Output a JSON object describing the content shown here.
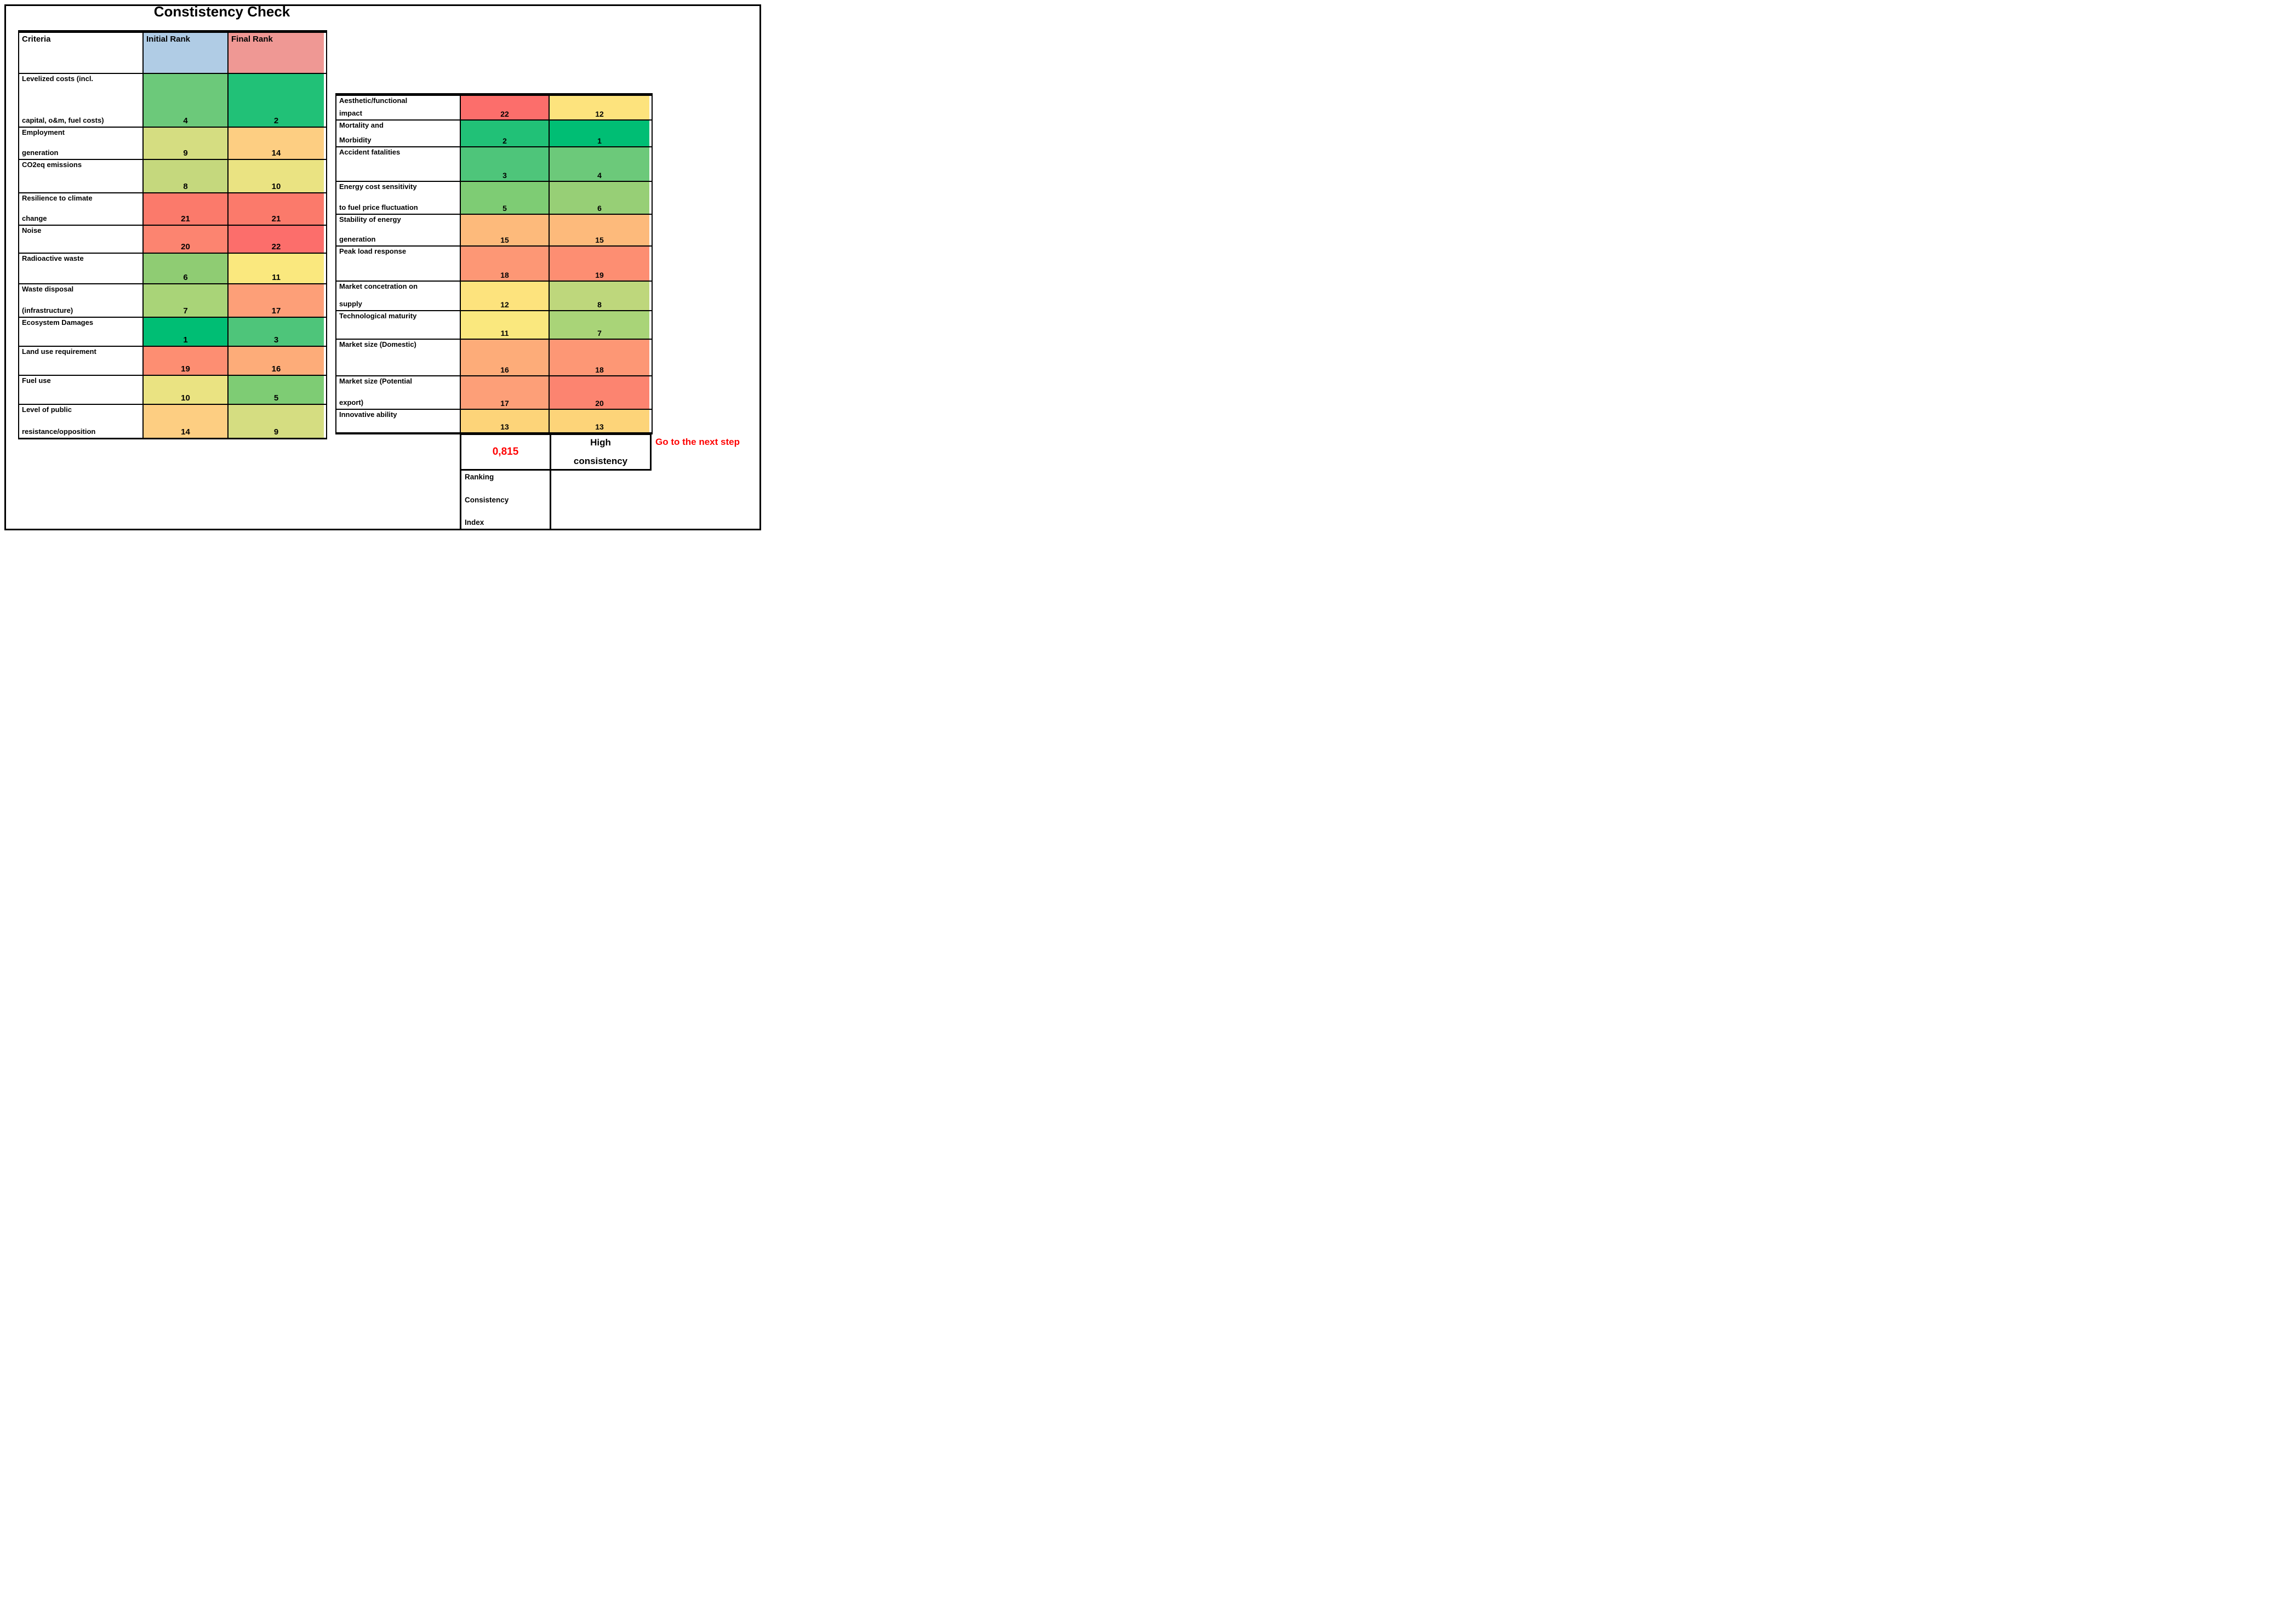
{
  "title": "Constistency Check",
  "left_table": {
    "headers": {
      "criteria": "Criteria",
      "initial": "Initial Rank",
      "final": "Final Rank"
    },
    "header_colors": {
      "initial_bg": "#B0CCE5",
      "final_bg": "#EF9894"
    },
    "rows": [
      {
        "label_lines": [
          "Levelized costs (incl.",
          "capital, o&m, fuel costs)"
        ],
        "initial": {
          "value": "4",
          "color": "#6CC97A"
        },
        "final": {
          "value": "2",
          "color": "#21C177"
        }
      },
      {
        "label_lines": [
          "Employment",
          "generation"
        ],
        "initial": {
          "value": "9",
          "color": "#D5DD81"
        },
        "final": {
          "value": "14",
          "color": "#FDCE82"
        }
      },
      {
        "label_lines": [
          "CO2eq emissions"
        ],
        "initial": {
          "value": "8",
          "color": "#C5D87D"
        },
        "final": {
          "value": "10",
          "color": "#EAE382"
        }
      },
      {
        "label_lines": [
          "Resilience to climate",
          "change"
        ],
        "initial": {
          "value": "21",
          "color": "#FB7A6B"
        },
        "final": {
          "value": "21",
          "color": "#FB7A6B"
        }
      },
      {
        "label_lines": [
          "Noise"
        ],
        "initial": {
          "value": "20",
          "color": "#FC8470"
        },
        "final": {
          "value": "22",
          "color": "#FC6E6B"
        }
      },
      {
        "label_lines": [
          "Radioactive waste"
        ],
        "initial": {
          "value": "6",
          "color": "#8FCC73"
        },
        "final": {
          "value": "11",
          "color": "#FAE87E"
        }
      },
      {
        "label_lines": [
          "Waste disposal",
          "(infrastructure)"
        ],
        "initial": {
          "value": "7",
          "color": "#A9D478"
        },
        "final": {
          "value": "17",
          "color": "#FD9F78"
        }
      },
      {
        "label_lines": [
          "Ecosystem Damages"
        ],
        "initial": {
          "value": "1",
          "color": "#00BE74"
        },
        "final": {
          "value": "3",
          "color": "#4EC57A"
        }
      },
      {
        "label_lines": [
          "Land use requirement"
        ],
        "initial": {
          "value": "19",
          "color": "#FD8E72"
        },
        "final": {
          "value": "16",
          "color": "#FDAC79"
        }
      },
      {
        "label_lines": [
          "Fuel use"
        ],
        "initial": {
          "value": "10",
          "color": "#EAE382"
        },
        "final": {
          "value": "5",
          "color": "#7ECC74"
        }
      },
      {
        "label_lines": [
          "Level of public",
          "resistance/opposition"
        ],
        "initial": {
          "value": "14",
          "color": "#FDCE82"
        },
        "final": {
          "value": "9",
          "color": "#D5DD81"
        }
      }
    ]
  },
  "right_table": {
    "rows": [
      {
        "label_lines": [
          "Aesthetic/functional",
          "impact"
        ],
        "initial": {
          "value": "22",
          "color": "#FC6E6B"
        },
        "final": {
          "value": "12",
          "color": "#FDE37D"
        }
      },
      {
        "label_lines": [
          "Mortality and",
          "Morbidity"
        ],
        "initial": {
          "value": "2",
          "color": "#21C177"
        },
        "final": {
          "value": "1",
          "color": "#00BE74"
        }
      },
      {
        "label_lines": [
          "Accident fatalities"
        ],
        "initial": {
          "value": "3",
          "color": "#4EC57A"
        },
        "final": {
          "value": "4",
          "color": "#6CC97A"
        }
      },
      {
        "label_lines": [
          "Energy cost sensitivity",
          "to fuel price fluctuation"
        ],
        "initial": {
          "value": "5",
          "color": "#7ECC74"
        },
        "final": {
          "value": "6",
          "color": "#97CF76"
        }
      },
      {
        "label_lines": [
          "Stability of energy",
          "generation"
        ],
        "initial": {
          "value": "15",
          "color": "#FDBA7B"
        },
        "final": {
          "value": "15",
          "color": "#FDBA7B"
        }
      },
      {
        "label_lines": [
          "Peak load response"
        ],
        "initial": {
          "value": "18",
          "color": "#FD9775"
        },
        "final": {
          "value": "19",
          "color": "#FD8E72"
        }
      },
      {
        "label_lines": [
          "Market concetration on",
          "supply"
        ],
        "initial": {
          "value": "12",
          "color": "#FDE37D"
        },
        "final": {
          "value": "8",
          "color": "#BED77C"
        }
      },
      {
        "label_lines": [
          "Technological maturity"
        ],
        "initial": {
          "value": "11",
          "color": "#FAE87E"
        },
        "final": {
          "value": "7",
          "color": "#A9D478"
        }
      },
      {
        "label_lines": [
          "Market size (Domestic)"
        ],
        "initial": {
          "value": "16",
          "color": "#FDAC79"
        },
        "final": {
          "value": "18",
          "color": "#FD9775"
        }
      },
      {
        "label_lines": [
          "Market size (Potential",
          "export)"
        ],
        "initial": {
          "value": "17",
          "color": "#FD9F78"
        },
        "final": {
          "value": "20",
          "color": "#FC8470"
        }
      },
      {
        "label_lines": [
          "Innovative ability"
        ],
        "initial": {
          "value": "13",
          "color": "#FDD479"
        },
        "final": {
          "value": "13",
          "color": "#FDD479"
        }
      }
    ]
  },
  "summary": {
    "rci_value": "0,815",
    "rci_value_color": "#FF0000",
    "consistency_lines": [
      "High",
      "consistency"
    ],
    "rci_label_lines": [
      "Ranking",
      "Consistency",
      "Index"
    ],
    "next_step": "Go to the next step",
    "next_step_color": "#FF0000"
  },
  "chart_data": {
    "type": "table",
    "title": "Constistency Check",
    "columns": [
      "Criteria",
      "Initial Rank",
      "Final Rank"
    ],
    "rows": [
      [
        "Levelized costs (incl. capital, o&m, fuel costs)",
        4,
        2
      ],
      [
        "Employment generation",
        9,
        14
      ],
      [
        "CO2eq emissions",
        8,
        10
      ],
      [
        "Resilience to climate change",
        21,
        21
      ],
      [
        "Noise",
        20,
        22
      ],
      [
        "Radioactive waste",
        6,
        11
      ],
      [
        "Waste disposal (infrastructure)",
        7,
        17
      ],
      [
        "Ecosystem Damages",
        1,
        3
      ],
      [
        "Land use requirement",
        19,
        16
      ],
      [
        "Fuel use",
        10,
        5
      ],
      [
        "Level of public resistance/opposition",
        14,
        9
      ],
      [
        "Aesthetic/functional impact",
        22,
        12
      ],
      [
        "Mortality and Morbidity",
        2,
        1
      ],
      [
        "Accident fatalities",
        3,
        4
      ],
      [
        "Energy cost sensitivity to fuel price fluctuation",
        5,
        6
      ],
      [
        "Stability of energy generation",
        15,
        15
      ],
      [
        "Peak load response",
        18,
        19
      ],
      [
        "Market concetration on supply",
        12,
        8
      ],
      [
        "Technological maturity",
        11,
        7
      ],
      [
        "Market size (Domestic)",
        16,
        18
      ],
      [
        "Market size (Potential export)",
        17,
        20
      ],
      [
        "Innovative ability",
        13,
        13
      ]
    ],
    "ranking_consistency_index": "0,815",
    "consistency_assessment": "High consistency",
    "annotation": "Go to the next step",
    "color_scale": {
      "best_green": "#00BE74",
      "mid_yellow": "#FAE87E",
      "worst_red": "#FC6E6B"
    }
  }
}
